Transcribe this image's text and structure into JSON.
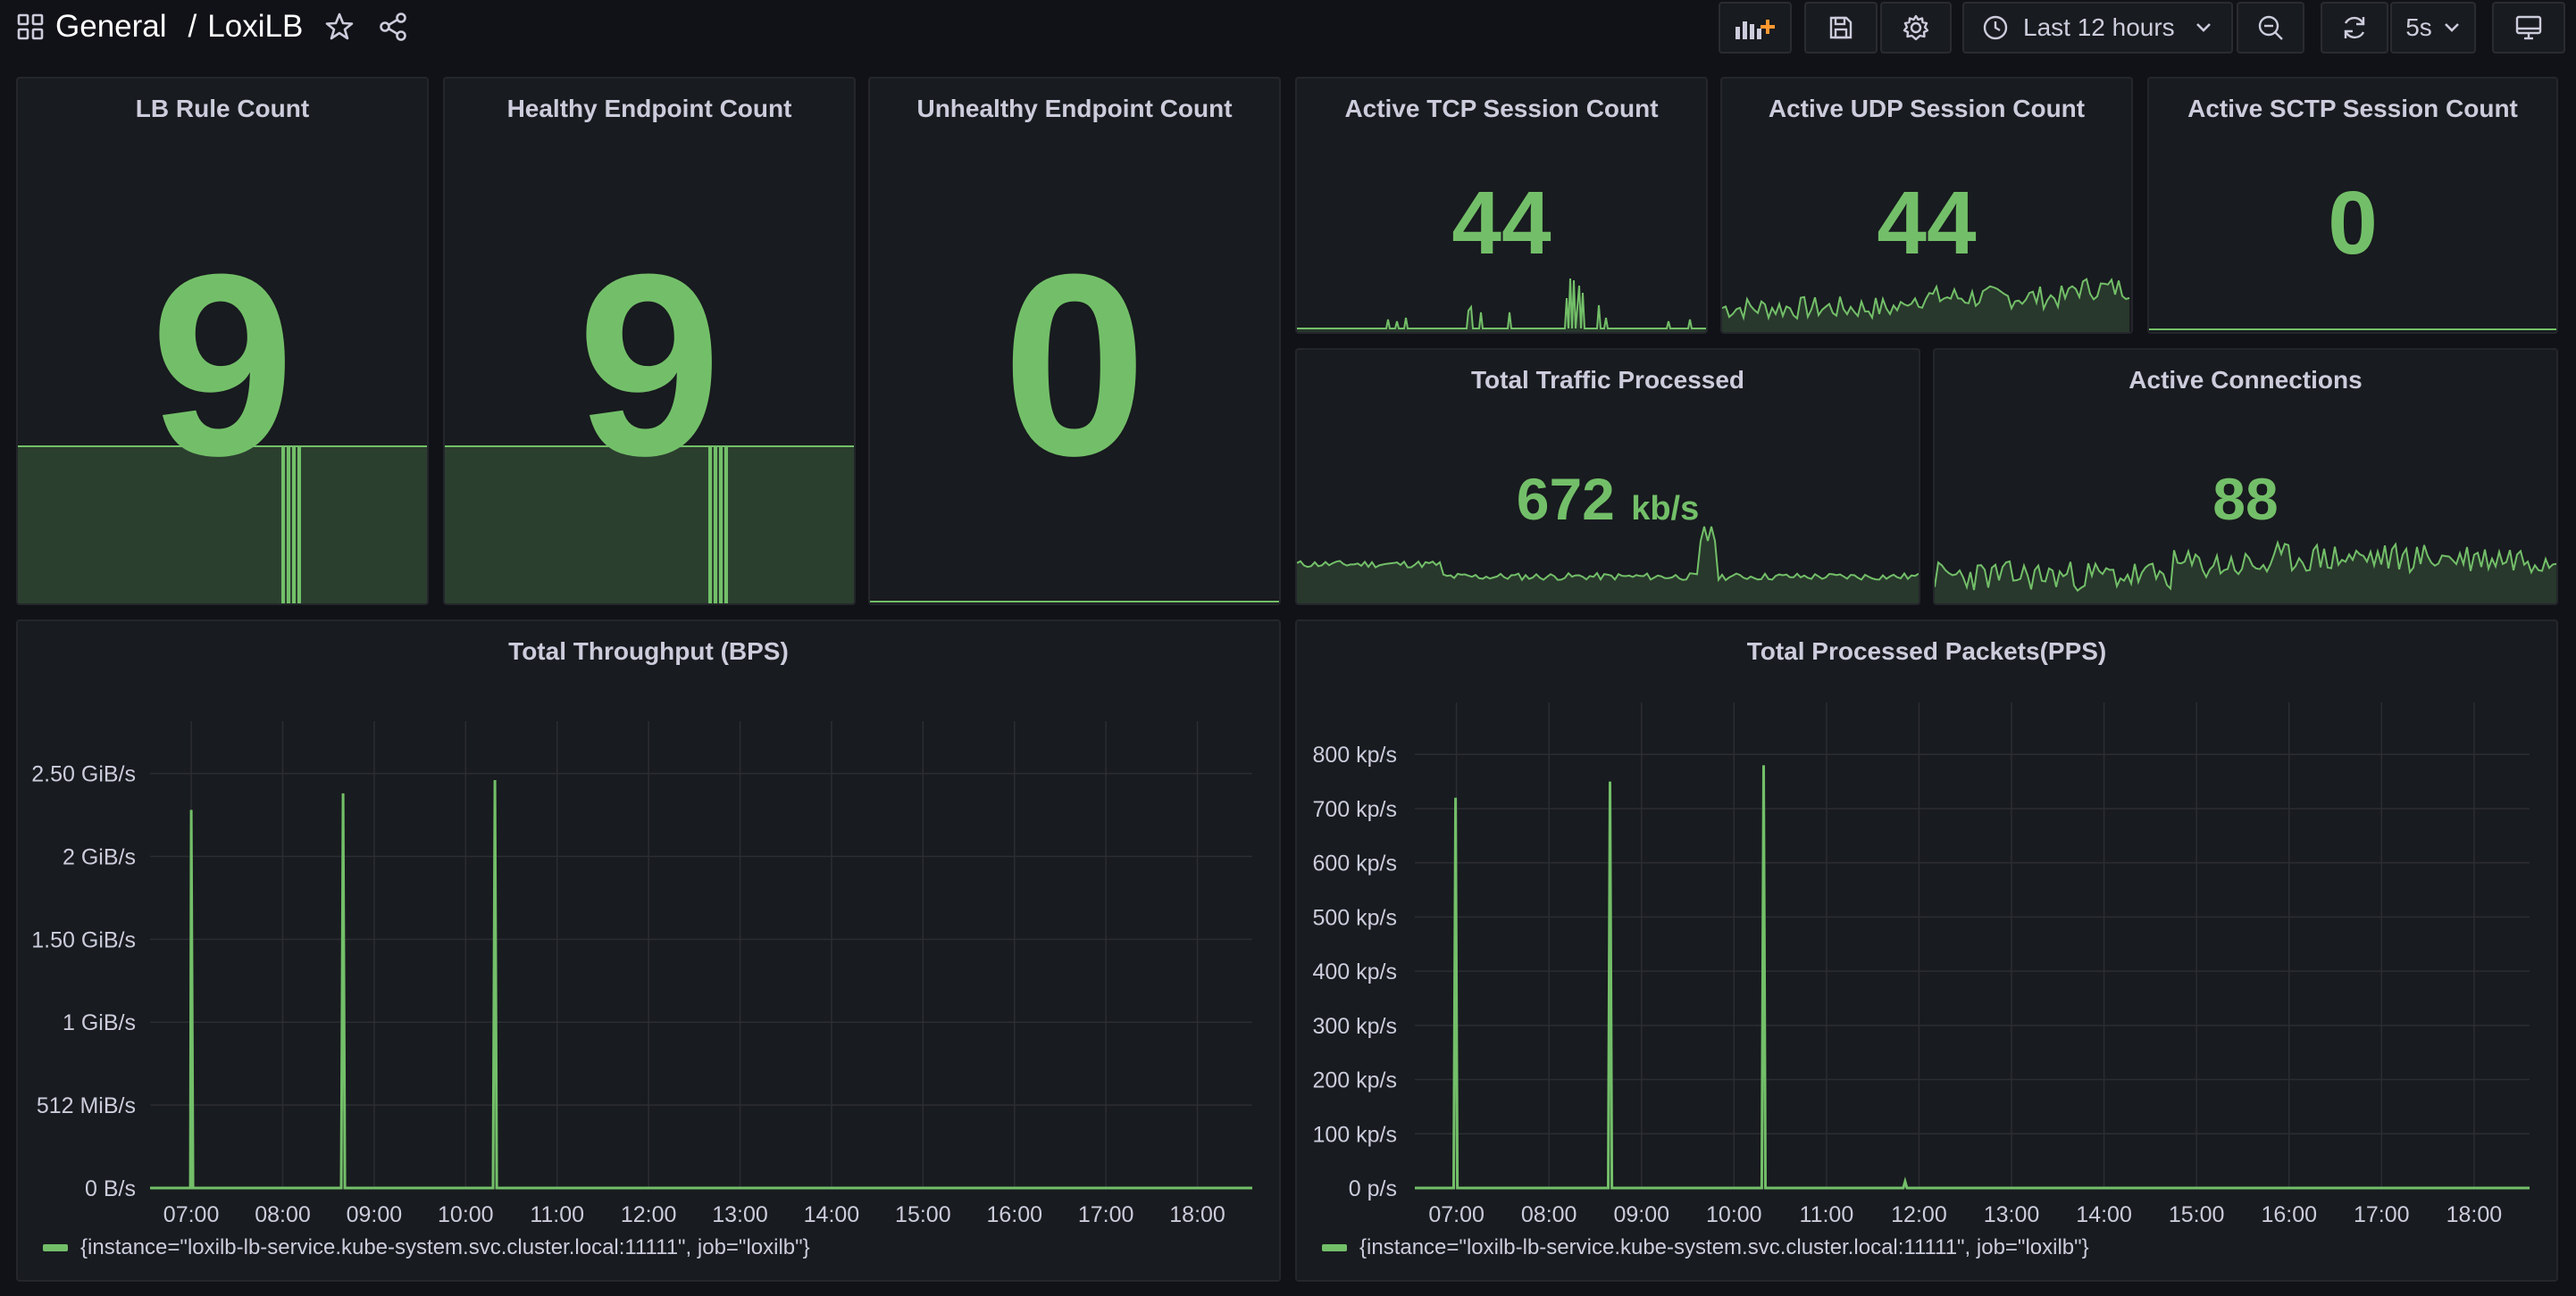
{
  "breadcrumb": {
    "folder": "General",
    "separator": "/",
    "dashboard": "LoxiLB"
  },
  "toolbar": {
    "time_range": "Last 12 hours",
    "refresh_interval": "5s"
  },
  "colors": {
    "background": "#111217",
    "panel": "#181b1f",
    "accent": "#73bf69",
    "text": "#ccccdc"
  },
  "stats": {
    "lb_rule": {
      "title": "LB Rule Count",
      "value": "9"
    },
    "healthy": {
      "title": "Healthy Endpoint Count",
      "value": "9"
    },
    "unhealthy": {
      "title": "Unhealthy Endpoint Count",
      "value": "0"
    },
    "tcp": {
      "title": "Active TCP Session Count",
      "value": "44"
    },
    "udp": {
      "title": "Active UDP Session Count",
      "value": "44"
    },
    "sctp": {
      "title": "Active SCTP Session Count",
      "value": "0"
    },
    "traffic": {
      "title": "Total Traffic Processed",
      "value": "672",
      "unit": "kb/s"
    },
    "connections": {
      "title": "Active Connections",
      "value": "88"
    }
  },
  "graphs": {
    "bps": {
      "title": "Total Throughput (BPS)",
      "legend": "{instance=\"loxilb-lb-service.kube-system.svc.cluster.local:11111\", job=\"loxilb\"}"
    },
    "pps": {
      "title": "Total Processed Packets(PPS)",
      "legend": "{instance=\"loxilb-lb-service.kube-system.svc.cluster.local:11111\", job=\"loxilb\"}"
    }
  },
  "chart_data": [
    {
      "type": "line",
      "title": "Total Throughput (BPS)",
      "x_ticks": [
        "07:00",
        "08:00",
        "09:00",
        "10:00",
        "11:00",
        "12:00",
        "13:00",
        "14:00",
        "15:00",
        "16:00",
        "17:00",
        "18:00"
      ],
      "y_ticks": [
        "0 B/s",
        "512 MiB/s",
        "1 GiB/s",
        "1.50 GiB/s",
        "2 GiB/s",
        "2.50 GiB/s"
      ],
      "ylim_gib": [
        0,
        2.6
      ],
      "xlim_hours": [
        6.55,
        18.6
      ],
      "series": [
        {
          "x_hours": [
            6.55,
            6.99,
            7.0,
            7.02,
            7.04,
            8.64,
            8.66,
            8.68,
            8.7,
            10.3,
            10.32,
            10.34,
            10.36,
            11.9,
            18.6
          ],
          "values_gib": [
            0,
            0,
            2.28,
            0,
            0,
            0,
            2.38,
            0,
            0,
            0,
            2.46,
            0,
            0,
            0,
            0
          ]
        }
      ],
      "legend": "top-left below chart",
      "grid": true
    },
    {
      "type": "line",
      "title": "Total Processed Packets(PPS)",
      "x_ticks": [
        "07:00",
        "08:00",
        "09:00",
        "10:00",
        "11:00",
        "12:00",
        "13:00",
        "14:00",
        "15:00",
        "16:00",
        "17:00",
        "18:00"
      ],
      "y_ticks": [
        "0 p/s",
        "100 kp/s",
        "200 kp/s",
        "300 kp/s",
        "400 kp/s",
        "500 kp/s",
        "600 kp/s",
        "700 kp/s",
        "800 kp/s"
      ],
      "ylim_kps": [
        0,
        830
      ],
      "xlim_hours": [
        6.55,
        18.6
      ],
      "series": [
        {
          "x_hours": [
            6.55,
            6.97,
            6.99,
            7.01,
            7.03,
            8.64,
            8.66,
            8.68,
            8.7,
            10.3,
            10.32,
            10.34,
            10.36,
            11.83,
            11.85,
            11.87,
            18.6
          ],
          "values_kps": [
            0,
            0,
            720,
            0,
            0,
            0,
            750,
            0,
            0,
            0,
            780,
            0,
            0,
            0,
            12,
            0,
            0
          ]
        }
      ],
      "legend": "top-left below chart",
      "grid": true
    }
  ]
}
